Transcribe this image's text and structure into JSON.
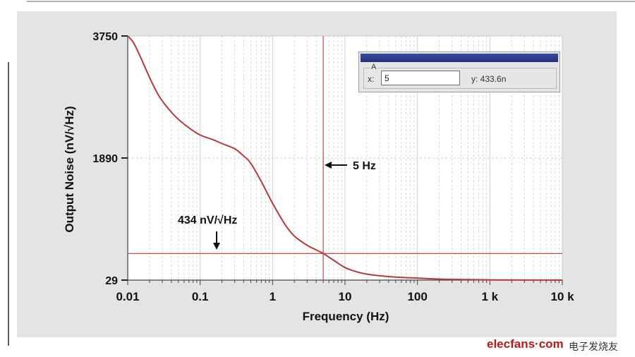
{
  "colors": {
    "curve": "#b83a3a",
    "cursor_line": "#d04848",
    "grid": "#cfcfcf",
    "plot_bg": "#ffffff",
    "panel_bg": "#e4e4e4"
  },
  "chart_data": {
    "type": "line",
    "xlabel": "Frequency (Hz)",
    "ylabel": "Output Noise (nV/√Hz)",
    "xscale": "log",
    "xlim": [
      0.01,
      10000
    ],
    "ylim": [
      29,
      3750
    ],
    "grid": true,
    "x_tick_labels": [
      "0.01",
      "0.1",
      "1",
      "10",
      "100",
      "1 k",
      "10 k"
    ],
    "y_tick_labels": [
      "29",
      "1890",
      "3750"
    ],
    "series": [
      {
        "x": [
          0.01,
          0.012,
          0.015,
          0.02,
          0.025,
          0.03,
          0.04,
          0.05,
          0.07,
          0.1,
          0.15,
          0.2,
          0.3,
          0.4,
          0.5,
          0.7,
          1,
          1.5,
          2,
          3,
          4,
          5,
          7,
          10,
          15,
          20,
          30,
          50,
          100,
          200,
          500,
          1000,
          2000,
          5000,
          10000
        ],
        "y": [
          3750,
          3650,
          3430,
          3120,
          2900,
          2760,
          2590,
          2480,
          2350,
          2240,
          2170,
          2110,
          2030,
          1920,
          1810,
          1530,
          1200,
          870,
          700,
          560,
          490,
          434,
          330,
          220,
          150,
          120,
          95,
          75,
          60,
          45,
          36,
          33,
          31,
          30,
          29
        ]
      }
    ],
    "annotations": {
      "cursor": {
        "x": 5,
        "y": 434
      },
      "freq_label": "5 Hz",
      "noise_label": "434 nV/√Hz"
    }
  },
  "cursor_panel": {
    "group_label": "A",
    "x_label": "x:",
    "x_value": "5",
    "y_readout": "y: 433.6n"
  },
  "watermark": {
    "brand": "elecfans·com",
    "brand_cn": "电子发烧友"
  }
}
